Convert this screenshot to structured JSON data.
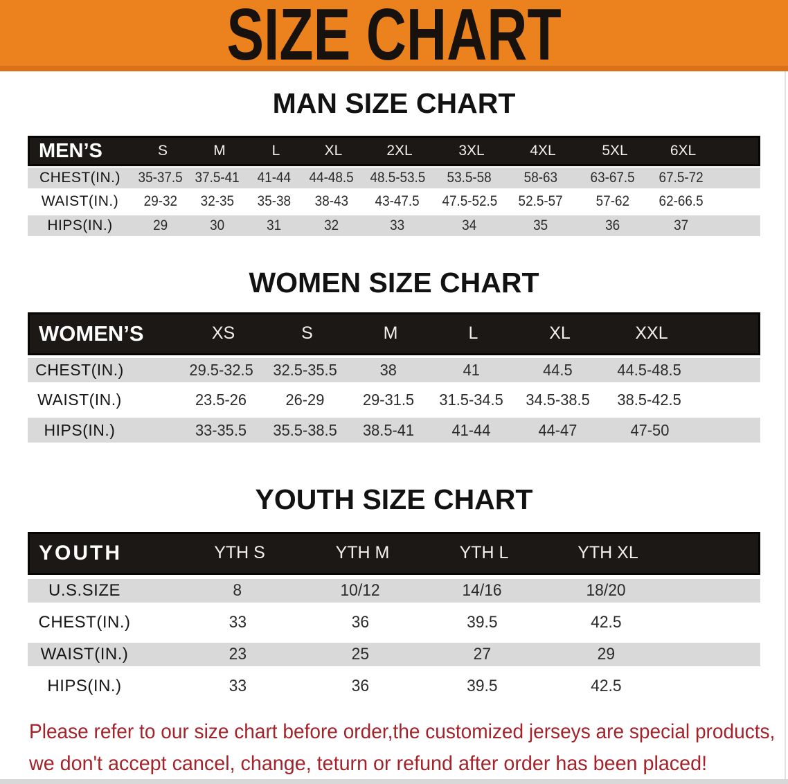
{
  "banner": {
    "title": "SIZE CHART"
  },
  "chart_data": [
    {
      "type": "table",
      "title": "MAN SIZE CHART",
      "header": [
        "MEN’S",
        "S",
        "M",
        "L",
        "XL",
        "2XL",
        "3XL",
        "4XL",
        "5XL",
        "6XL"
      ],
      "rows": [
        [
          "CHEST(IN.)",
          "35-37.5",
          "37.5-41",
          "41-44",
          "44-48.5",
          "48.5-53.5",
          "53.5-58",
          "58-63",
          "63-67.5",
          "67.5-72"
        ],
        [
          "WAIST(IN.)",
          "29-32",
          "32-35",
          "35-38",
          "38-43",
          "43-47.5",
          "47.5-52.5",
          "52.5-57",
          "57-62",
          "62-66.5"
        ],
        [
          "HIPS(IN.)",
          "29",
          "30",
          "31",
          "32",
          "33",
          "34",
          "35",
          "36",
          "37"
        ]
      ]
    },
    {
      "type": "table",
      "title": "WOMEN SIZE CHART",
      "header": [
        "WOMEN’S",
        "XS",
        "S",
        "M",
        "L",
        "XL",
        "XXL"
      ],
      "rows": [
        [
          "CHEST(IN.)",
          "29.5-32.5",
          "32.5-35.5",
          "38",
          "41",
          "44.5",
          "44.5-48.5"
        ],
        [
          "WAIST(IN.)",
          "23.5-26",
          "26-29",
          "29-31.5",
          "31.5-34.5",
          "34.5-38.5",
          "38.5-42.5"
        ],
        [
          "HIPS(IN.)",
          "33-35.5",
          "35.5-38.5",
          "38.5-41",
          "41-44",
          "44-47",
          "47-50"
        ]
      ]
    },
    {
      "type": "table",
      "title": "YOUTH SIZE CHART",
      "header": [
        "YOUTH",
        "YTH S",
        "YTH M",
        "YTH L",
        "YTH XL"
      ],
      "rows": [
        [
          "U.S.SIZE",
          "8",
          "10/12",
          "14/16",
          "18/20"
        ],
        [
          "CHEST(IN.)",
          "33",
          "36",
          "39.5",
          "42.5"
        ],
        [
          "WAIST(IN.)",
          "23",
          "25",
          "27",
          "29"
        ],
        [
          "HIPS(IN.)",
          "33",
          "36",
          "39.5",
          "42.5"
        ]
      ]
    }
  ],
  "disclaimer": {
    "lines": [
      "Please refer to our size chart before order,the customized jerseys are special products,",
      "we don't accept cancel, change, teturn or refund after order has been placed!"
    ]
  },
  "colors": {
    "banner_orange": "#EB821D",
    "banner_orange_edge": "#D9701A",
    "header_black": "#1B1816",
    "row_gray": "#D9D9D9",
    "disclaimer_red": "#A3232A"
  }
}
